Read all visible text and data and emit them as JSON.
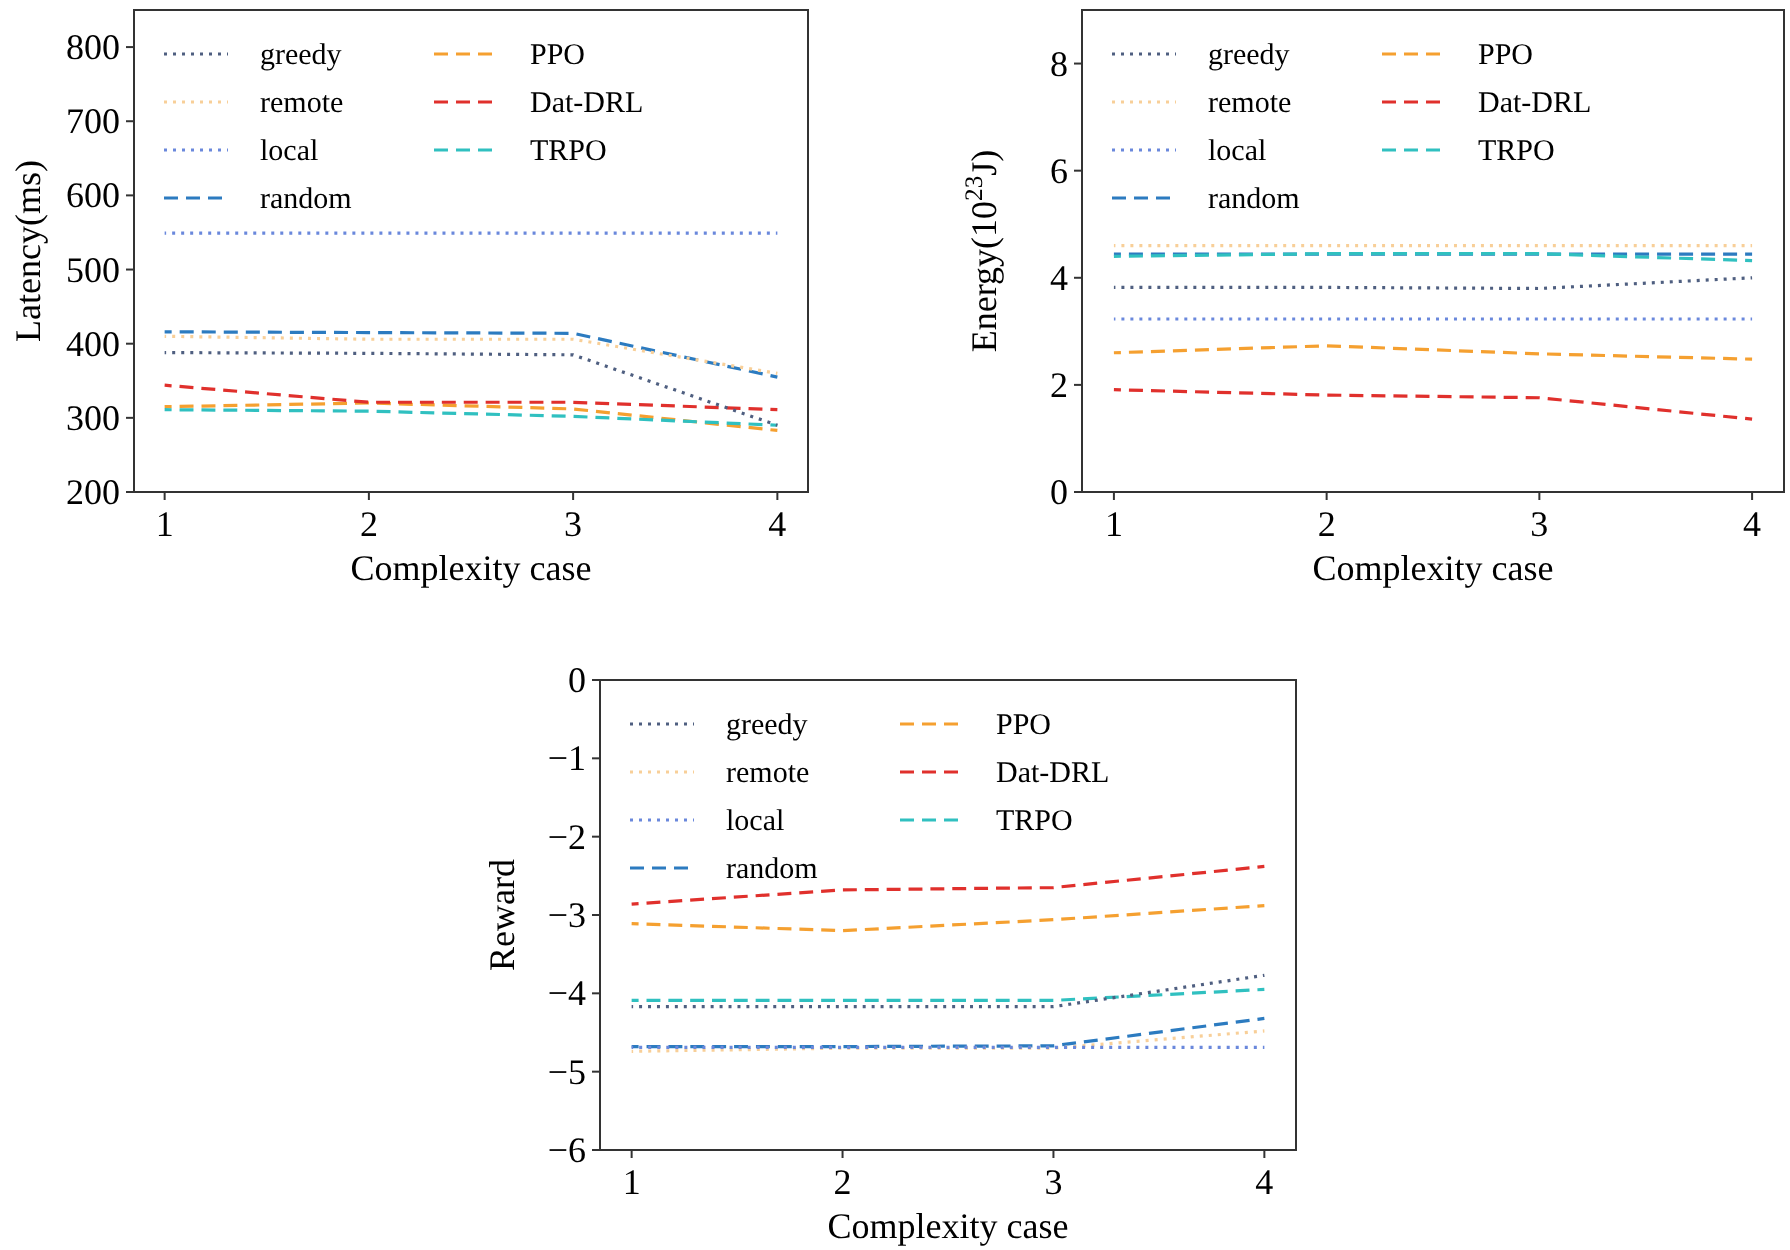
{
  "chart_data": [
    {
      "type": "line",
      "xlabel": "Complexity case",
      "ylabel": "Latency(ms)",
      "x": [
        1,
        2,
        3,
        4
      ],
      "xlim": [
        0.85,
        4.15
      ],
      "xticks": [
        1,
        2,
        3,
        4
      ],
      "ylim": [
        200,
        850
      ],
      "yticks": [
        200,
        300,
        400,
        500,
        600,
        700,
        800
      ],
      "legend": "top left",
      "grid": false,
      "series": [
        {
          "name": "greedy",
          "color": "#4f5f80",
          "line_style": "dotted",
          "values": [
            388,
            387,
            385,
            290
          ]
        },
        {
          "name": "remote",
          "color": "#f8cf98",
          "line_style": "dotted",
          "values": [
            410,
            406,
            406,
            360
          ]
        },
        {
          "name": "local",
          "color": "#6a88dc",
          "line_style": "dotted",
          "values": [
            549,
            549,
            549,
            549
          ]
        },
        {
          "name": "random",
          "color": "#2c7bc0",
          "line_style": "dashed",
          "values": [
            416,
            415,
            414,
            355
          ]
        },
        {
          "name": "PPO",
          "color": "#f5a030",
          "line_style": "dashed",
          "values": [
            315,
            320,
            312,
            283
          ]
        },
        {
          "name": "Dat-DRL",
          "color": "#e0302c",
          "line_style": "dashed",
          "values": [
            344,
            321,
            321,
            311
          ]
        },
        {
          "name": "TRPO",
          "color": "#30c0c0",
          "line_style": "dashed",
          "values": [
            311,
            309,
            302,
            290
          ]
        }
      ]
    },
    {
      "type": "line",
      "xlabel": "Complexity case",
      "ylabel": "Energy(10$^{23}$J)",
      "x": [
        1,
        2,
        3,
        4
      ],
      "xlim": [
        0.85,
        4.15
      ],
      "xticks": [
        1,
        2,
        3,
        4
      ],
      "ylim": [
        0,
        9
      ],
      "yticks": [
        0,
        2,
        4,
        6,
        8
      ],
      "legend": "top left",
      "grid": false,
      "series": [
        {
          "name": "greedy",
          "color": "#4f5f80",
          "line_style": "dotted",
          "values": [
            3.82,
            3.82,
            3.8,
            4.0
          ]
        },
        {
          "name": "remote",
          "color": "#f8cf98",
          "line_style": "dotted",
          "values": [
            4.6,
            4.6,
            4.6,
            4.6
          ]
        },
        {
          "name": "local",
          "color": "#6a88dc",
          "line_style": "dotted",
          "values": [
            3.23,
            3.23,
            3.23,
            3.23
          ]
        },
        {
          "name": "random",
          "color": "#2c7bc0",
          "line_style": "dashed",
          "values": [
            4.44,
            4.44,
            4.44,
            4.44
          ]
        },
        {
          "name": "PPO",
          "color": "#f5a030",
          "line_style": "dashed",
          "values": [
            2.6,
            2.73,
            2.58,
            2.48
          ]
        },
        {
          "name": "Dat-DRL",
          "color": "#e0302c",
          "line_style": "dashed",
          "values": [
            1.91,
            1.81,
            1.76,
            1.36
          ]
        },
        {
          "name": "TRPO",
          "color": "#30c0c0",
          "line_style": "dashed",
          "values": [
            4.4,
            4.45,
            4.45,
            4.32
          ]
        }
      ]
    },
    {
      "type": "line",
      "xlabel": "Complexity case",
      "ylabel": "Reward",
      "x": [
        1,
        2,
        3,
        4
      ],
      "xlim": [
        0.85,
        4.15
      ],
      "xticks": [
        1,
        2,
        3,
        4
      ],
      "ylim": [
        -6,
        0
      ],
      "yticks": [
        {
          "value": -6,
          "label": "−6"
        },
        {
          "value": -5,
          "label": "−5"
        },
        {
          "value": -4,
          "label": "−4"
        },
        {
          "value": -3,
          "label": "−3"
        },
        {
          "value": -2,
          "label": "−2"
        },
        {
          "value": -1,
          "label": "−1"
        },
        0
      ],
      "legend": "top left",
      "grid": false,
      "series": [
        {
          "name": "greedy",
          "color": "#4f5f80",
          "line_style": "dotted",
          "values": [
            -4.17,
            -4.17,
            -4.17,
            -3.77
          ]
        },
        {
          "name": "remote",
          "color": "#f8cf98",
          "line_style": "dotted",
          "values": [
            -4.74,
            -4.7,
            -4.7,
            -4.48
          ]
        },
        {
          "name": "local",
          "color": "#6a88dc",
          "line_style": "dotted",
          "values": [
            -4.69,
            -4.69,
            -4.69,
            -4.69
          ]
        },
        {
          "name": "random",
          "color": "#2c7bc0",
          "line_style": "dashed",
          "values": [
            -4.68,
            -4.68,
            -4.67,
            -4.32
          ]
        },
        {
          "name": "PPO",
          "color": "#f5a030",
          "line_style": "dashed",
          "values": [
            -3.11,
            -3.2,
            -3.06,
            -2.88
          ]
        },
        {
          "name": "Dat-DRL",
          "color": "#e0302c",
          "line_style": "dashed",
          "values": [
            -2.86,
            -2.68,
            -2.65,
            -2.38
          ]
        },
        {
          "name": "TRPO",
          "color": "#30c0c0",
          "line_style": "dashed",
          "values": [
            -4.09,
            -4.09,
            -4.09,
            -3.95
          ]
        }
      ]
    }
  ]
}
